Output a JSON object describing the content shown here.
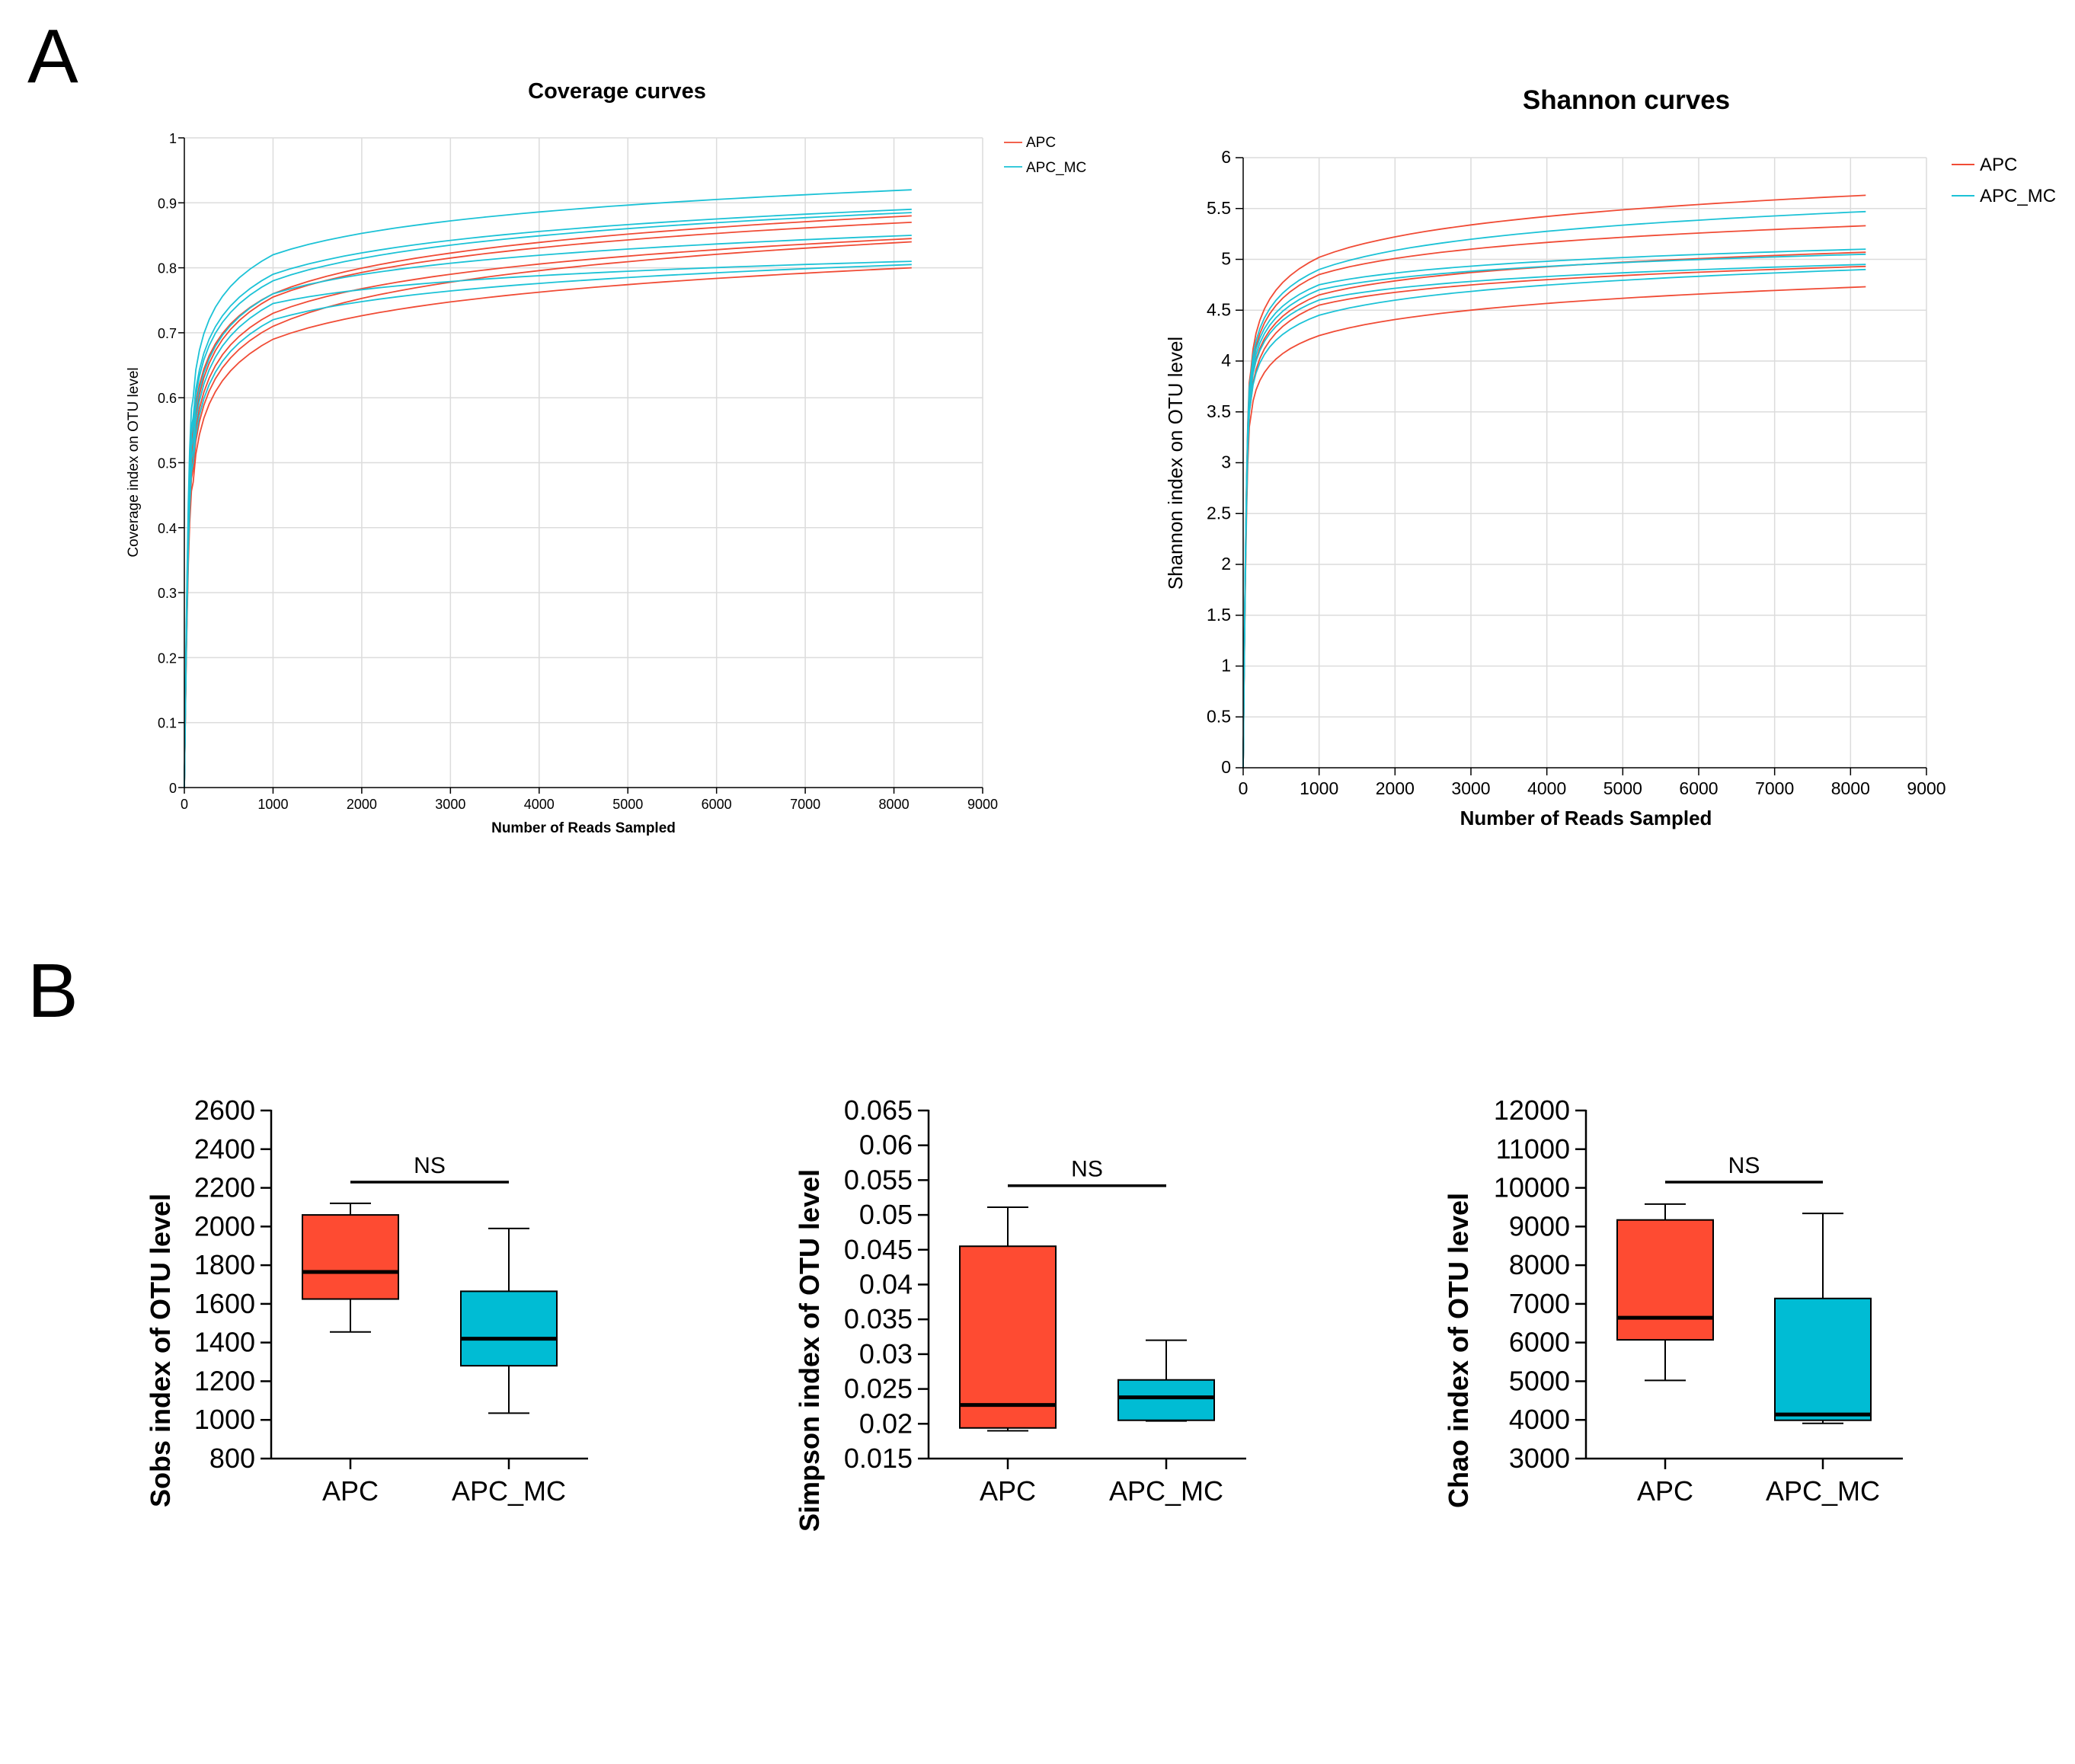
{
  "panels": {
    "a_label": "A",
    "b_label": "B"
  },
  "colors": {
    "APC": "#f04b35",
    "APC_MC": "#1cc2d6",
    "box_apc": "#fe4b32",
    "box_apc_mc": "#00bcd4"
  },
  "chart_data": [
    {
      "type": "line",
      "id": "coverage",
      "title": "Coverage curves",
      "xlabel": "Number of Reads Sampled",
      "ylabel": "Coverage index on OTU level",
      "xlim": [
        0,
        9000
      ],
      "ylim": [
        0,
        1
      ],
      "x_ticks": [
        "0",
        "1000",
        "2000",
        "3000",
        "4000",
        "5000",
        "6000",
        "7000",
        "8000",
        "9000"
      ],
      "y_ticks": [
        "0",
        "0.1",
        "0.2",
        "0.3",
        "0.4",
        "0.5",
        "0.6",
        "0.7",
        "0.8",
        "0.9",
        "1"
      ],
      "grid": true,
      "legend": [
        "APC",
        "APC_MC"
      ],
      "legend_position": "top-right",
      "x_end": 8200,
      "series": [
        {
          "name": "APC",
          "at_100": 0.47,
          "at_1000": 0.69,
          "at_8200": 0.8
        },
        {
          "name": "APC",
          "at_100": 0.49,
          "at_1000": 0.71,
          "at_8200": 0.84
        },
        {
          "name": "APC",
          "at_100": 0.51,
          "at_1000": 0.73,
          "at_8200": 0.845
        },
        {
          "name": "APC",
          "at_100": 0.53,
          "at_1000": 0.755,
          "at_8200": 0.87
        },
        {
          "name": "APC",
          "at_100": 0.55,
          "at_1000": 0.76,
          "at_8200": 0.88
        },
        {
          "name": "APC_MC",
          "at_100": 0.5,
          "at_1000": 0.72,
          "at_8200": 0.805
        },
        {
          "name": "APC_MC",
          "at_100": 0.52,
          "at_1000": 0.745,
          "at_8200": 0.81
        },
        {
          "name": "APC_MC",
          "at_100": 0.54,
          "at_1000": 0.76,
          "at_8200": 0.85
        },
        {
          "name": "APC_MC",
          "at_100": 0.56,
          "at_1000": 0.78,
          "at_8200": 0.885
        },
        {
          "name": "APC_MC",
          "at_100": 0.57,
          "at_1000": 0.79,
          "at_8200": 0.89
        },
        {
          "name": "APC_MC",
          "at_100": 0.6,
          "at_1000": 0.82,
          "at_8200": 0.92
        }
      ]
    },
    {
      "type": "line",
      "id": "shannon",
      "title": "Shannon curves",
      "xlabel": "Number of Reads Sampled",
      "ylabel": "Shannon index on OTU level",
      "xlim": [
        0,
        9000
      ],
      "ylim": [
        0,
        6
      ],
      "x_ticks": [
        "0",
        "1000",
        "2000",
        "3000",
        "4000",
        "5000",
        "6000",
        "7000",
        "8000",
        "9000"
      ],
      "y_ticks": [
        "0",
        "0.5",
        "1",
        "1.5",
        "2",
        "2.5",
        "3",
        "3.5",
        "4",
        "4.5",
        "5",
        "5.5",
        "6"
      ],
      "grid": true,
      "legend": [
        "APC",
        "APC_MC"
      ],
      "legend_position": "top-right",
      "x_end": 8200,
      "series": [
        {
          "name": "APC",
          "at_100": 3.45,
          "at_1000": 4.25,
          "at_8200": 4.73
        },
        {
          "name": "APC",
          "at_100": 3.6,
          "at_1000": 4.55,
          "at_8200": 4.93
        },
        {
          "name": "APC",
          "at_100": 3.7,
          "at_1000": 4.65,
          "at_8200": 5.07
        },
        {
          "name": "APC",
          "at_100": 3.8,
          "at_1000": 4.85,
          "at_8200": 5.33
        },
        {
          "name": "APC",
          "at_100": 3.9,
          "at_1000": 5.02,
          "at_8200": 5.63
        },
        {
          "name": "APC_MC",
          "at_100": 3.6,
          "at_1000": 4.45,
          "at_8200": 4.9
        },
        {
          "name": "APC_MC",
          "at_100": 3.7,
          "at_1000": 4.6,
          "at_8200": 4.95
        },
        {
          "name": "APC_MC",
          "at_100": 3.75,
          "at_1000": 4.7,
          "at_8200": 5.05
        },
        {
          "name": "APC_MC",
          "at_100": 3.8,
          "at_1000": 4.75,
          "at_8200": 5.1
        },
        {
          "name": "APC_MC",
          "at_100": 3.85,
          "at_1000": 4.9,
          "at_8200": 5.47
        }
      ]
    },
    {
      "type": "box",
      "id": "sobs",
      "ylabel": "Sobs index of OTU level",
      "ylim": [
        800,
        2600
      ],
      "y_ticks": [
        "800",
        "1000",
        "1200",
        "1400",
        "1600",
        "1800",
        "2000",
        "2200",
        "2400",
        "2600"
      ],
      "categories": [
        "APC",
        "APC_MC"
      ],
      "boxes": [
        {
          "name": "APC",
          "min": 1455,
          "q1": 1625,
          "median": 1765,
          "q3": 2060,
          "max": 2120
        },
        {
          "name": "APC_MC",
          "min": 1035,
          "q1": 1280,
          "median": 1420,
          "q3": 1665,
          "max": 1990
        }
      ],
      "significance": {
        "label": "NS",
        "y": 2230
      }
    },
    {
      "type": "box",
      "id": "simpson",
      "ylabel": "Simpson index of OTU level",
      "ylim": [
        0.015,
        0.065
      ],
      "y_ticks": [
        "0.015",
        "0.02",
        "0.025",
        "0.03",
        "0.035",
        "0.04",
        "0.045",
        "0.05",
        "0.055",
        "0.06",
        "0.065"
      ],
      "categories": [
        "APC",
        "APC_MC"
      ],
      "boxes": [
        {
          "name": "APC",
          "min": 0.019,
          "q1": 0.0194,
          "median": 0.0227,
          "q3": 0.0455,
          "max": 0.0511
        },
        {
          "name": "APC_MC",
          "min": 0.0204,
          "q1": 0.0205,
          "median": 0.0238,
          "q3": 0.0263,
          "max": 0.032
        }
      ],
      "significance": {
        "label": "NS",
        "y": 0.0542
      }
    },
    {
      "type": "box",
      "id": "chao",
      "ylabel": "Chao index of OTU level",
      "ylim": [
        3000,
        12000
      ],
      "y_ticks": [
        "3000",
        "4000",
        "5000",
        "6000",
        "7000",
        "8000",
        "9000",
        "10000",
        "11000",
        "12000"
      ],
      "categories": [
        "APC",
        "APC_MC"
      ],
      "boxes": [
        {
          "name": "APC",
          "min": 5020,
          "q1": 6070,
          "median": 6640,
          "q3": 9170,
          "max": 9580
        },
        {
          "name": "APC_MC",
          "min": 3910,
          "q1": 3990,
          "median": 4140,
          "q3": 7140,
          "max": 9340
        }
      ],
      "significance": {
        "label": "NS",
        "y": 10150
      }
    }
  ]
}
